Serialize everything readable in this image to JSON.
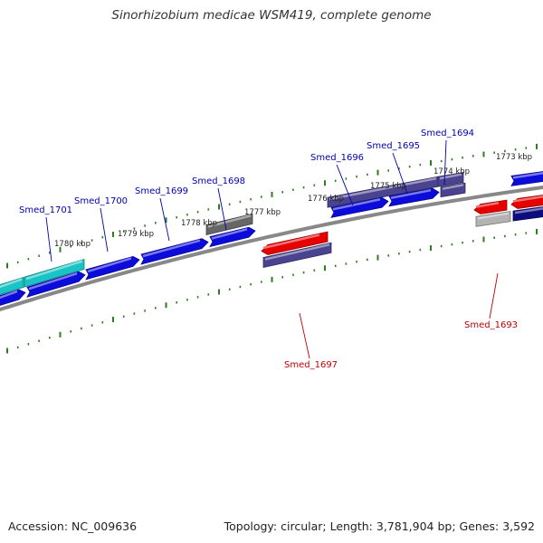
{
  "title": "Sinorhizobium medicae WSM419, complete genome",
  "footer": {
    "accession": "Accession: NC_009636",
    "summary": "Topology: circular; Length: 3,781,904 bp; Genes: 3,592"
  },
  "colors": {
    "backbone": "#888888",
    "tick": "#2e7d1f",
    "gene_blue": "#0b0bdc",
    "gene_cyan": "#19c4c4",
    "gene_slate": "#4a4390",
    "gene_navy": "#0d0d80",
    "gene_red": "#e60000",
    "gene_gray": "#666666",
    "gene_lightgray": "#b3b3b3",
    "label_blue": "#0000b4",
    "label_red": "#c00000"
  },
  "kbp_labels": [
    "1780 kbp",
    "1779 kbp",
    "1778 kbp",
    "1777 kbp",
    "1776 kbp",
    "1775 kbp",
    "1774 kbp",
    "1773 kbp"
  ],
  "gene_labels": [
    {
      "text": "Smed_1701",
      "color": "label_blue"
    },
    {
      "text": "Smed_1700",
      "color": "label_blue"
    },
    {
      "text": "Smed_1699",
      "color": "label_blue"
    },
    {
      "text": "Smed_1698",
      "color": "label_blue"
    },
    {
      "text": "Smed_1696",
      "color": "label_blue"
    },
    {
      "text": "Smed_1695",
      "color": "label_blue"
    },
    {
      "text": "Smed_1694",
      "color": "label_blue"
    },
    {
      "text": "Smed_1697",
      "color": "label_red"
    },
    {
      "text": "Smed_1693",
      "color": "label_red"
    }
  ],
  "genes": [
    {
      "color": "gene_cyan",
      "arrow": false
    },
    {
      "color": "gene_cyan",
      "arrow": false
    },
    {
      "color": "gene_blue",
      "arrow": true
    },
    {
      "color": "gene_blue",
      "arrow": true
    },
    {
      "color": "gene_blue",
      "arrow": true
    },
    {
      "color": "gene_blue",
      "arrow": true
    },
    {
      "color": "gene_blue",
      "arrow": true
    },
    {
      "color": "gene_gray",
      "arrow": false
    },
    {
      "color": "gene_slate",
      "arrow": false
    },
    {
      "color": "gene_slate",
      "arrow": false
    },
    {
      "color": "gene_blue",
      "arrow": true
    },
    {
      "color": "gene_blue",
      "arrow": true
    },
    {
      "color": "gene_slate",
      "arrow": false
    },
    {
      "color": "gene_blue",
      "arrow": true
    },
    {
      "color": "gene_red",
      "arrow": true
    },
    {
      "color": "gene_slate",
      "arrow": false
    },
    {
      "color": "gene_red",
      "arrow": true
    },
    {
      "color": "gene_red",
      "arrow": true
    },
    {
      "color": "gene_lightgray",
      "arrow": false
    },
    {
      "color": "gene_navy",
      "arrow": false
    }
  ]
}
